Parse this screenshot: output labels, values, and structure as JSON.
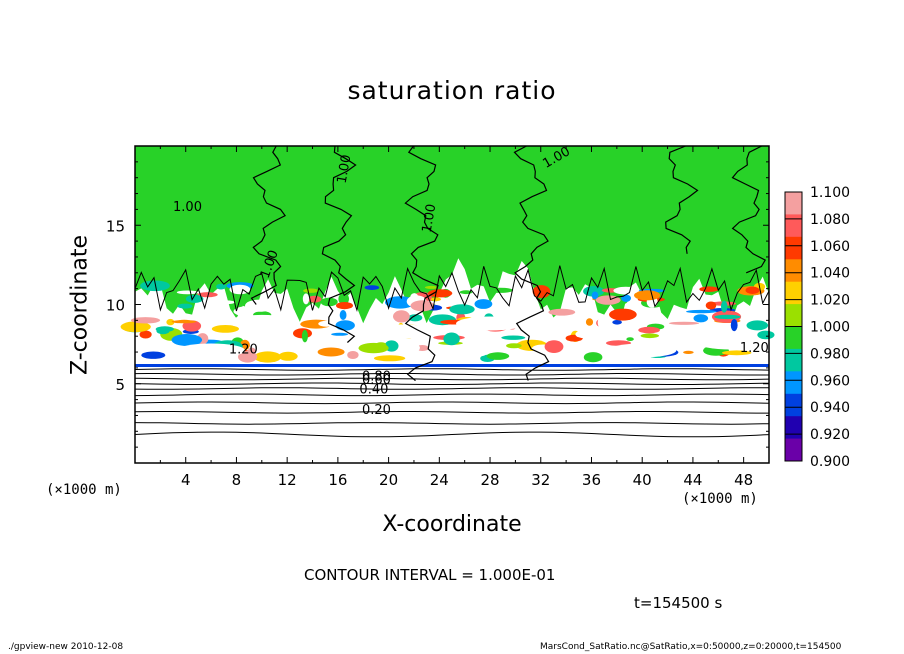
{
  "chart_data": {
    "type": "heatmap",
    "title": "saturation ratio",
    "xlabel": "X-coordinate",
    "ylabel": "Z-coordinate",
    "x_unit": "(×1000 m)",
    "xlim": [
      0,
      50
    ],
    "ylim": [
      0,
      20
    ],
    "x_ticks": [
      4,
      8,
      12,
      16,
      20,
      24,
      28,
      32,
      36,
      40,
      44,
      48
    ],
    "y_ticks": [
      5,
      10,
      15
    ],
    "colorbar": {
      "levels": [
        "1.100",
        "1.080",
        "1.060",
        "1.040",
        "1.020",
        "1.000",
        "0.980",
        "0.960",
        "0.940",
        "0.920",
        "0.900"
      ],
      "colors": [
        "#f4a0a0",
        "#ff5a5a",
        "#ff3a00",
        "#ff8c00",
        "#ffd000",
        "#9be000",
        "#28d228",
        "#00c8a0",
        "#0096ff",
        "#0040e0",
        "#2000b0",
        "#6a00a8"
      ]
    },
    "contour_labels": [
      "1.00",
      "1.00",
      "1.00",
      "1.00",
      "1.00",
      "1.20",
      "1.20",
      "0.80",
      "0.60",
      "0.40",
      "0.20"
    ],
    "contour_interval": "CONTOUR INTERVAL = 1.000E-01",
    "time": "t=154500 s"
  },
  "footer": {
    "left": "./gpview-new   2010-12-08",
    "right": "MarsCond_SatRatio.nc@SatRatio,x=0:50000,z=0:20000,t=154500"
  }
}
